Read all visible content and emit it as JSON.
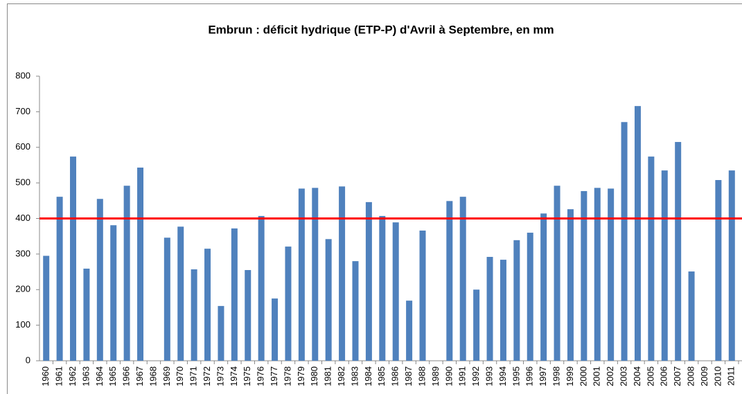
{
  "chart_data": {
    "type": "bar",
    "title": "Embrun : déficit hydrique (ETP-P) d'Avril à Septembre, en mm",
    "categories": [
      "1960",
      "1961",
      "1962",
      "1963",
      "1964",
      "1965",
      "1966",
      "1967",
      "1968",
      "1969",
      "1970",
      "1971",
      "1972",
      "1973",
      "1974",
      "1975",
      "1976",
      "1977",
      "1978",
      "1979",
      "1980",
      "1981",
      "1982",
      "1983",
      "1984",
      "1985",
      "1986",
      "1987",
      "1988",
      "1989",
      "1990",
      "1991",
      "1992",
      "1993",
      "1994",
      "1995",
      "1996",
      "1997",
      "1998",
      "1999",
      "2000",
      "2001",
      "2002",
      "2003",
      "2004",
      "2005",
      "2006",
      "2007",
      "2008",
      "2009",
      "2010",
      "2011"
    ],
    "values": [
      295,
      461,
      574,
      259,
      455,
      381,
      492,
      543,
      null,
      346,
      377,
      257,
      315,
      154,
      372,
      255,
      407,
      175,
      321,
      484,
      486,
      342,
      490,
      280,
      446,
      407,
      389,
      169,
      366,
      null,
      449,
      461,
      200,
      292,
      284,
      339,
      360,
      414,
      492,
      426,
      477,
      486,
      484,
      671,
      716,
      574,
      535,
      615,
      251,
      null,
      508,
      535
    ],
    "color": "#4f81bd",
    "reference_line": 400,
    "reference_color": "#ff0000",
    "ylim": [
      0,
      800
    ],
    "yticks": [
      0,
      100,
      200,
      300,
      400,
      500,
      600,
      700,
      800
    ],
    "grid": false
  }
}
